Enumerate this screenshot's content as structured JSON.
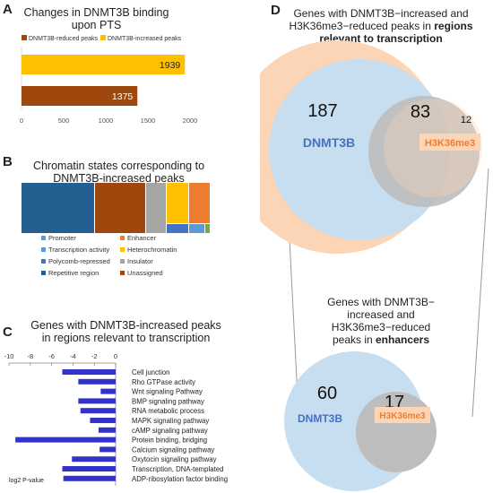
{
  "panels": {
    "a": {
      "letter": "A",
      "title_line1": "Changes in DNMT3B binding",
      "title_line2": "upon PTS"
    },
    "b": {
      "letter": "B",
      "title_line1": "Chromatin states corresponding to",
      "title_line2": "DNMT3B-increased peaks"
    },
    "c": {
      "letter": "C",
      "title_line1": "Genes with DNMT3B-increased peaks",
      "title_line2": "in regions relevant to transcription"
    },
    "d": {
      "letter": "D",
      "top_title_line1": "Genes with DNMT3B−increased and",
      "top_title_line2a": "H3K36me3−reduced peaks in ",
      "top_title_line2b": "regions",
      "top_title_line3": "relevant to transcription",
      "bottom_title_line1": "Genes with DNMT3B−",
      "bottom_title_line2": "increased and",
      "bottom_title_line3": "H3K36me3−reduced",
      "bottom_title_line4a": "peaks in ",
      "bottom_title_line4b": "enhancers"
    }
  },
  "chart_data": [
    {
      "type": "bar",
      "orientation": "horizontal",
      "categories": [
        "DNMT3B-increased peaks",
        "DNMT3B-reduced peaks"
      ],
      "values": [
        1939,
        1375
      ],
      "legend": [
        "DNMT3B-reduced peaks",
        "DNMT3B-increased peaks"
      ],
      "colors": [
        "#ffc000",
        "#9e480e"
      ],
      "legend_colors": [
        "#9e480e",
        "#ffc000"
      ],
      "xticks": [
        "0",
        "500",
        "1000",
        "1500",
        "2000"
      ],
      "xlim": [
        0,
        2000
      ]
    },
    {
      "type": "treemap",
      "segments": [
        {
          "label": "Promoter",
          "color": "#255e91"
        },
        {
          "label": "Enhancer",
          "color": "#9e480e"
        },
        {
          "label": "Transcription activity",
          "color": "#a5a5a5"
        },
        {
          "label": "Heterochromatin",
          "color": "#ffc000"
        },
        {
          "label": "Polycomb-repressed",
          "color": "#4472c4"
        },
        {
          "label": "Insulator",
          "color": "#5b9bd5"
        },
        {
          "label": "Repetitive region",
          "color": "#70ad47"
        },
        {
          "label": "Unassigned",
          "color": "#ed7d31"
        }
      ],
      "legend_left": [
        "Promoter",
        "Transcription activity",
        "Polycomb-repressed",
        "Repetitive region"
      ],
      "legend_right": [
        "Enhancer",
        "Heterochromatin",
        "Insulator",
        "Unassigned"
      ],
      "legend_left_colors": [
        "#5b9bd5",
        "#5b9bd5",
        "#4472c4",
        "#255e91"
      ],
      "legend_right_colors": [
        "#ed7d31",
        "#ffc000",
        "#a5a5a5",
        "#9e480e"
      ]
    },
    {
      "type": "bar",
      "orientation": "horizontal",
      "categories": [
        "Cell junction",
        "Rho GTPase activity",
        "Wnt signaling Pathway",
        "BMP signaling pathway",
        "RNA metabolic process",
        "MAPK signaling pathway",
        "cAMP signaling pathway",
        "Protein binding, bridging",
        "Calcium signaling pathway",
        "Oxytocin signaling pathway",
        "Transcription, DNA-templated",
        "ADP-ribosylation factor binding"
      ],
      "values": [
        -5.0,
        -3.5,
        -1.4,
        -3.5,
        -3.3,
        -2.4,
        -1.6,
        -9.4,
        -1.5,
        -4.1,
        -5.0,
        -4.9
      ],
      "xlabel": "log2 P-value",
      "xticks": [
        "-10",
        "-8",
        "-6",
        "-4",
        "-2",
        "0"
      ],
      "xlim": [
        -10,
        0
      ],
      "color": "#3333cc"
    },
    {
      "type": "venn",
      "sets": [
        "DNMT3B",
        "H3K36me3"
      ],
      "values": {
        "DNMT3B_only": 187,
        "both": 83,
        "H3K36me3_only": 12
      },
      "colors": [
        "#c6def0",
        "#fbd5b5"
      ]
    },
    {
      "type": "venn",
      "sets": [
        "DNMT3B",
        "H3K36me3"
      ],
      "values": {
        "DNMT3B_only": 60,
        "both": 17
      },
      "colors": [
        "#c6def0",
        "#fbd5b5"
      ]
    }
  ]
}
